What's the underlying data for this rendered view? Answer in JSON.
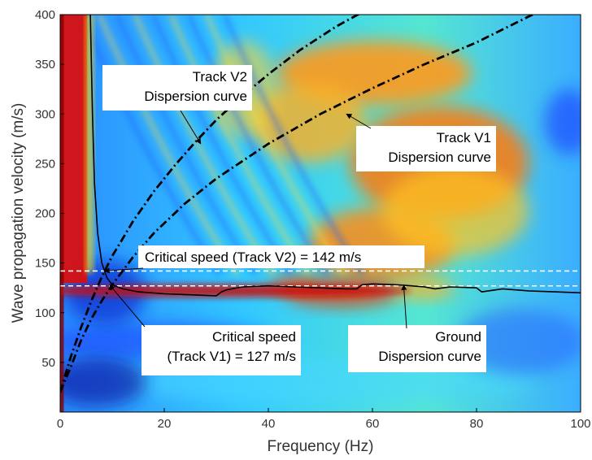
{
  "chart_data": {
    "type": "heatmap",
    "title": "",
    "xlabel": "Frequency (Hz)",
    "ylabel": "Wave propagation velocity (m/s)",
    "xlim": [
      0,
      100
    ],
    "ylim": [
      0,
      400
    ],
    "xticks": [
      0,
      20,
      40,
      60,
      80,
      100
    ],
    "yticks": [
      50,
      100,
      150,
      200,
      250,
      300,
      350,
      400
    ],
    "colormap": "jet",
    "series": [
      {
        "style": "dash-dot",
        "color": "#000000",
        "x": [
          0,
          2,
          4,
          6,
          8,
          10,
          14,
          18,
          22,
          26,
          30,
          35,
          40,
          46,
          53,
          60
        ],
        "y": [
          20,
          55,
          85,
          112,
          136,
          157,
          192,
          222,
          248,
          272,
          294,
          318,
          340,
          364,
          388,
          408
        ]
      },
      {
        "style": "dash-dot",
        "color": "#000000",
        "x": [
          0,
          2,
          4,
          6,
          8,
          10,
          14,
          18,
          24,
          30,
          40,
          50,
          60,
          70,
          80,
          90,
          95
        ],
        "y": [
          20,
          45,
          72,
          94,
          112,
          128,
          156,
          180,
          210,
          235,
          270,
          300,
          326,
          350,
          372,
          398,
          410
        ]
      },
      {
        "style": "solid",
        "color": "#000000",
        "x": [
          5.8,
          6.2,
          6.6,
          7.2,
          8,
          9,
          10,
          12,
          15,
          20,
          25,
          30,
          31,
          32,
          35,
          40,
          45,
          50,
          55,
          57,
          58,
          60,
          65,
          70,
          72,
          75,
          80,
          81,
          85,
          90,
          95,
          100
        ],
        "y": [
          400,
          300,
          230,
          180,
          150,
          135,
          128,
          124,
          121,
          119,
          118,
          117,
          121,
          123,
          126,
          127,
          126,
          125,
          124,
          124,
          128,
          129,
          128,
          126,
          124,
          126,
          125,
          121,
          124,
          122,
          121,
          120
        ]
      }
    ],
    "reference_lines": [
      {
        "y": 142,
        "style": "dashed",
        "color": "#ffffff"
      },
      {
        "y": 127,
        "style": "dashed",
        "color": "#ffffff"
      }
    ],
    "annotations": [
      {
        "id": "v2",
        "lines": [
          "Track V2",
          "Dispersion curve"
        ],
        "arrow_to": [
          27,
          270
        ]
      },
      {
        "id": "v1",
        "lines": [
          "Track V1",
          "Dispersion curve"
        ],
        "arrow_to": [
          55,
          300
        ]
      },
      {
        "id": "crit2",
        "lines": [
          "Critical speed (Track V2) = 142 m/s"
        ],
        "arrow_to": [
          8.5,
          142
        ]
      },
      {
        "id": "crit1",
        "lines": [
          "Critical speed",
          "(Track V1) = 127 m/s"
        ],
        "arrow_to": [
          9.5,
          128
        ]
      },
      {
        "id": "ground",
        "lines": [
          "Ground",
          "Dispersion curve"
        ],
        "arrow_to": [
          66,
          128
        ]
      }
    ]
  }
}
